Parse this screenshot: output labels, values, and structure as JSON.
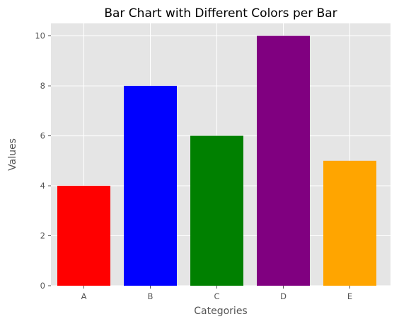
{
  "chart_data": {
    "type": "bar",
    "title": "Bar Chart with Different Colors per Bar",
    "xlabel": "Categories",
    "ylabel": "Values",
    "categories": [
      "A",
      "B",
      "C",
      "D",
      "E"
    ],
    "values": [
      4,
      8,
      6,
      10,
      5
    ],
    "bar_colors": [
      "#ff0000",
      "#0000ff",
      "#008000",
      "#800080",
      "#ffa500"
    ],
    "ylim": [
      0,
      10.5
    ],
    "yticks": [
      0,
      2,
      4,
      6,
      8,
      10
    ],
    "grid": true,
    "style": {
      "plot_background": "#e5e5e5",
      "grid_color": "#ffffff",
      "text_color": "#555555"
    }
  }
}
